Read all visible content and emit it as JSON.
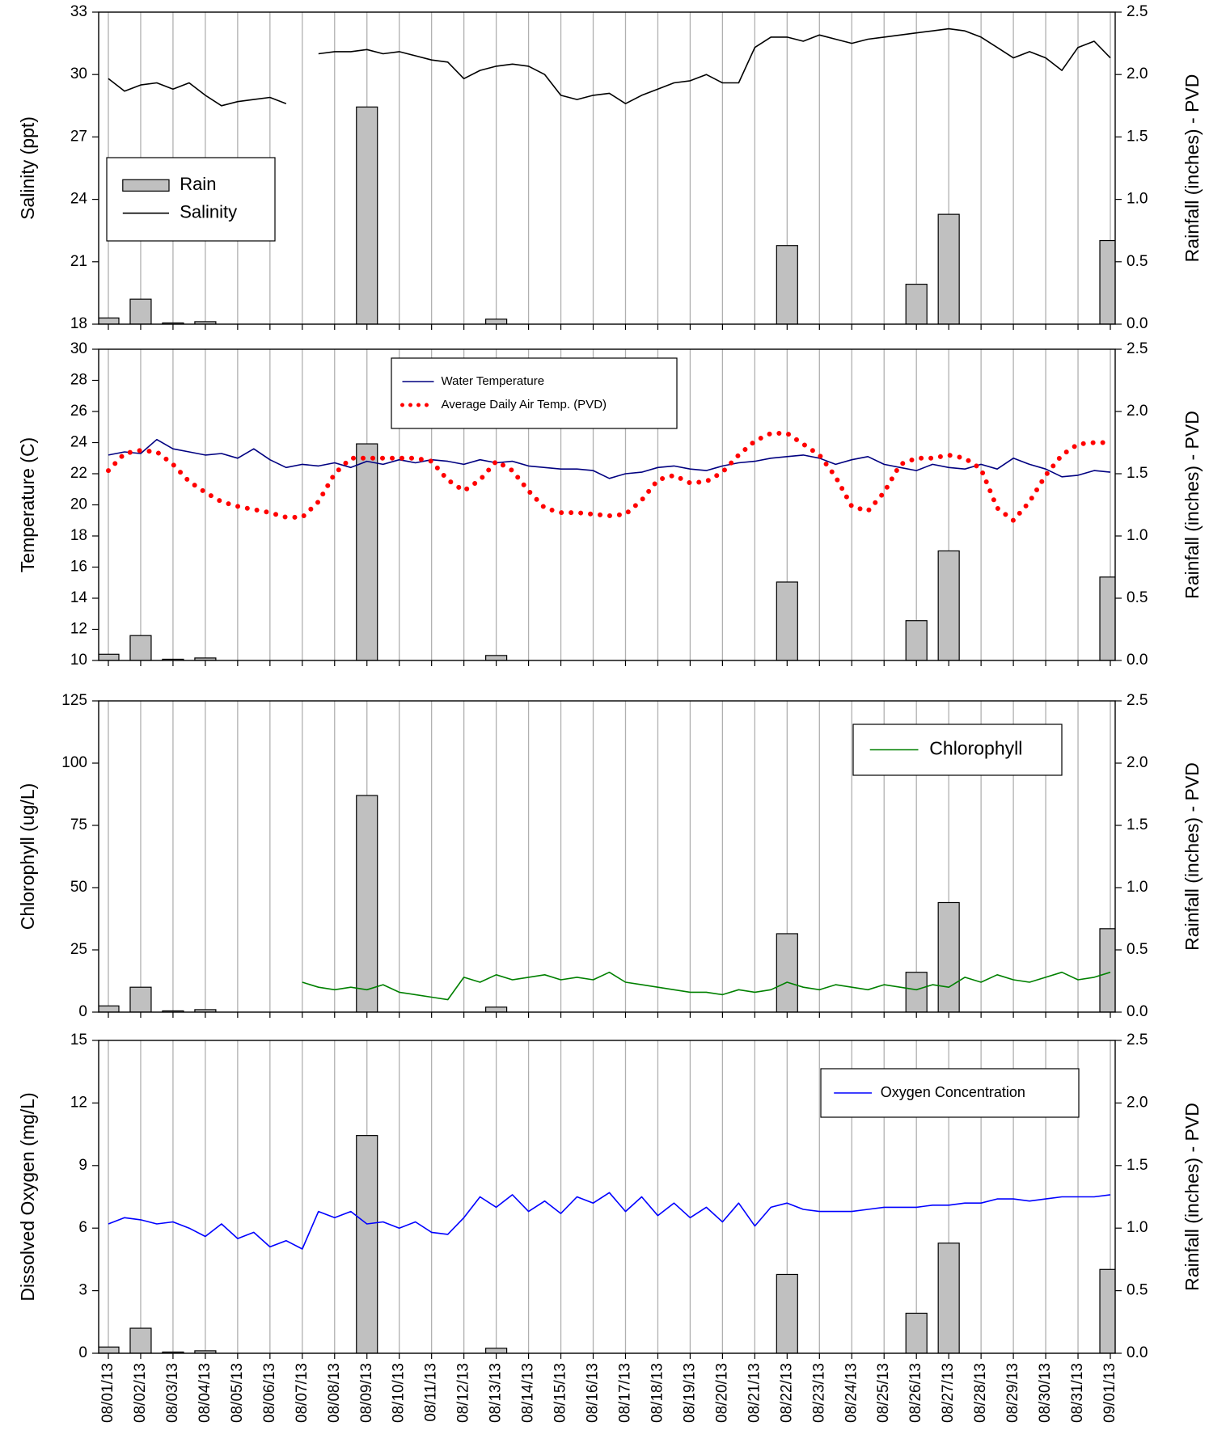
{
  "chart_data": [
    {
      "type": "line",
      "ylabel": "Salinity (ppt)",
      "y2label": "Rainfall (inches) - PVD",
      "xlim": [
        -0.3,
        31.15
      ],
      "xticks": [
        0,
        1,
        2,
        3,
        4,
        5,
        6,
        7,
        8,
        9,
        10,
        11,
        12,
        13,
        14,
        15,
        16,
        17,
        18,
        19,
        20,
        21,
        22,
        23,
        24,
        25,
        26,
        27,
        28,
        29,
        30,
        31
      ],
      "ylim": [
        18,
        33
      ],
      "yticks": [
        18,
        21,
        24,
        27,
        30,
        33
      ],
      "y2lim": [
        0,
        2.5
      ],
      "y2ticks": [
        {
          "value": 0,
          "label": "0.0"
        },
        {
          "value": 0.5,
          "label": "0.5"
        },
        {
          "value": 1,
          "label": "1.0"
        },
        {
          "value": 1.5,
          "label": "1.5"
        },
        {
          "value": 2,
          "label": "2.0"
        },
        {
          "value": 2.5,
          "label": "2.5"
        }
      ],
      "grid": true,
      "x": [
        0,
        0.5,
        1,
        1.5,
        2,
        2.5,
        3,
        3.5,
        4,
        4.5,
        5,
        5.5,
        6,
        6.5,
        7,
        7.5,
        8,
        8.5,
        9,
        9.5,
        10,
        10.5,
        11,
        11.5,
        12,
        12.5,
        13,
        13.5,
        14,
        14.5,
        15,
        15.5,
        16,
        16.5,
        17,
        17.5,
        18,
        18.5,
        19,
        19.5,
        20,
        20.5,
        21,
        21.5,
        22,
        22.5,
        23,
        23.5,
        24,
        24.5,
        25,
        25.5,
        26,
        26.5,
        27,
        27.5,
        28,
        28.5,
        29,
        29.5,
        30,
        30.5,
        31
      ],
      "series": [
        {
          "name": "Rain",
          "type": "bar",
          "axis": "y2",
          "color": "#c0c0c0",
          "x": [
            0,
            1,
            2,
            3,
            8,
            12,
            21,
            25,
            26,
            31
          ],
          "values": [
            0.05,
            0.2,
            0.01,
            0.02,
            1.74,
            0.04,
            0.63,
            0.32,
            0.88,
            0.67
          ]
        },
        {
          "name": "Salinity",
          "type": "line",
          "color": "#000000",
          "values": [
            29.8,
            29.2,
            29.5,
            29.6,
            29.3,
            29.6,
            29.0,
            28.5,
            28.7,
            28.8,
            28.9,
            28.6,
            null,
            31.0,
            31.1,
            31.1,
            31.2,
            31.0,
            31.1,
            30.9,
            30.7,
            30.6,
            29.8,
            30.2,
            30.4,
            30.5,
            30.4,
            30.0,
            29.0,
            28.8,
            29.0,
            29.1,
            28.6,
            29.0,
            29.3,
            29.6,
            29.7,
            30.0,
            29.6,
            29.6,
            31.3,
            31.8,
            31.8,
            31.6,
            31.9,
            31.7,
            31.5,
            31.7,
            31.8,
            31.9,
            32.0,
            32.1,
            32.2,
            32.1,
            31.8,
            31.3,
            30.8,
            31.1,
            30.8,
            30.2,
            31.3,
            31.6,
            30.8
          ]
        }
      ]
    },
    {
      "type": "line",
      "ylabel": "Temperature (C)",
      "y2label": "Rainfall (inches) - PVD",
      "xlim": [
        -0.3,
        31.15
      ],
      "xticks": [
        0,
        1,
        2,
        3,
        4,
        5,
        6,
        7,
        8,
        9,
        10,
        11,
        12,
        13,
        14,
        15,
        16,
        17,
        18,
        19,
        20,
        21,
        22,
        23,
        24,
        25,
        26,
        27,
        28,
        29,
        30,
        31
      ],
      "ylim": [
        10,
        30
      ],
      "yticks": [
        10,
        12,
        14,
        16,
        18,
        20,
        22,
        24,
        26,
        28,
        30
      ],
      "y2lim": [
        0,
        2.5
      ],
      "y2ticks": [
        {
          "value": 0,
          "label": "0.0"
        },
        {
          "value": 0.5,
          "label": "0.5"
        },
        {
          "value": 1,
          "label": "1.0"
        },
        {
          "value": 1.5,
          "label": "1.5"
        },
        {
          "value": 2,
          "label": "2.0"
        },
        {
          "value": 2.5,
          "label": "2.5"
        }
      ],
      "grid": true,
      "x": [
        0,
        0.5,
        1,
        1.5,
        2,
        2.5,
        3,
        3.5,
        4,
        4.5,
        5,
        5.5,
        6,
        6.5,
        7,
        7.5,
        8,
        8.5,
        9,
        9.5,
        10,
        10.5,
        11,
        11.5,
        12,
        12.5,
        13,
        13.5,
        14,
        14.5,
        15,
        15.5,
        16,
        16.5,
        17,
        17.5,
        18,
        18.5,
        19,
        19.5,
        20,
        20.5,
        21,
        21.5,
        22,
        22.5,
        23,
        23.5,
        24,
        24.5,
        25,
        25.5,
        26,
        26.5,
        27,
        27.5,
        28,
        28.5,
        29,
        29.5,
        30,
        30.5,
        31
      ],
      "series": [
        {
          "type": "bar",
          "axis": "y2",
          "color": "#c0c0c0",
          "x": [
            0,
            1,
            2,
            3,
            8,
            12,
            21,
            25,
            26,
            31
          ],
          "values": [
            0.05,
            0.2,
            0.01,
            0.02,
            1.74,
            0.04,
            0.63,
            0.32,
            0.88,
            0.67
          ]
        },
        {
          "name": "Water Temperature",
          "type": "line",
          "color": "#000080",
          "values": [
            23.2,
            23.4,
            23.3,
            24.2,
            23.6,
            23.4,
            23.2,
            23.3,
            23.0,
            23.6,
            22.9,
            22.4,
            22.6,
            22.5,
            22.7,
            22.4,
            22.8,
            22.6,
            22.9,
            22.7,
            22.9,
            22.8,
            22.6,
            22.9,
            22.7,
            22.8,
            22.5,
            22.4,
            22.3,
            22.3,
            22.2,
            21.7,
            22.0,
            22.1,
            22.4,
            22.5,
            22.3,
            22.2,
            22.5,
            22.7,
            22.8,
            23.0,
            23.1,
            23.2,
            23.0,
            22.6,
            22.9,
            23.1,
            22.6,
            22.4,
            22.2,
            22.6,
            22.4,
            22.3,
            22.6,
            22.3,
            23.0,
            22.6,
            22.3,
            21.8,
            21.9,
            22.2,
            22.1
          ]
        },
        {
          "name": "Average Daily Air Temp. (PVD)",
          "type": "line",
          "style": "dotted",
          "color": "#ff0000",
          "values": [
            22.2,
            23.3,
            23.5,
            23.4,
            22.6,
            21.5,
            20.8,
            20.2,
            19.9,
            19.7,
            19.5,
            19.2,
            19.2,
            20.2,
            22.0,
            23.0,
            23.0,
            23.0,
            23.0,
            23.0,
            22.8,
            21.6,
            20.9,
            21.6,
            22.8,
            22.2,
            20.9,
            19.8,
            19.5,
            19.5,
            19.4,
            19.3,
            19.4,
            20.3,
            21.6,
            21.9,
            21.4,
            21.5,
            22.1,
            23.2,
            24.1,
            24.6,
            24.6,
            23.9,
            23.2,
            21.8,
            19.9,
            19.6,
            20.8,
            22.6,
            23.0,
            23.0,
            23.2,
            23.0,
            22.3,
            19.8,
            19.0,
            20.2,
            21.9,
            23.2,
            23.9,
            24.0,
            24.0
          ]
        }
      ]
    },
    {
      "type": "line",
      "ylabel": "Chlorophyll (ug/L)",
      "y2label": "Rainfall (inches) - PVD",
      "xlim": [
        -0.3,
        31.15
      ],
      "xticks": [
        0,
        1,
        2,
        3,
        4,
        5,
        6,
        7,
        8,
        9,
        10,
        11,
        12,
        13,
        14,
        15,
        16,
        17,
        18,
        19,
        20,
        21,
        22,
        23,
        24,
        25,
        26,
        27,
        28,
        29,
        30,
        31
      ],
      "ylim": [
        0,
        125
      ],
      "yticks": [
        0,
        25,
        50,
        75,
        100,
        125
      ],
      "y2lim": [
        0,
        2.5
      ],
      "y2ticks": [
        {
          "value": 0,
          "label": "0.0"
        },
        {
          "value": 0.5,
          "label": "0.5"
        },
        {
          "value": 1,
          "label": "1.0"
        },
        {
          "value": 1.5,
          "label": "1.5"
        },
        {
          "value": 2,
          "label": "2.0"
        },
        {
          "value": 2.5,
          "label": "2.5"
        }
      ],
      "grid": true,
      "x": [
        0,
        0.5,
        1,
        1.5,
        2,
        2.5,
        3,
        3.5,
        4,
        4.5,
        5,
        5.5,
        6,
        6.5,
        7,
        7.5,
        8,
        8.5,
        9,
        9.5,
        10,
        10.5,
        11,
        11.5,
        12,
        12.5,
        13,
        13.5,
        14,
        14.5,
        15,
        15.5,
        16,
        16.5,
        17,
        17.5,
        18,
        18.5,
        19,
        19.5,
        20,
        20.5,
        21,
        21.5,
        22,
        22.5,
        23,
        23.5,
        24,
        24.5,
        25,
        25.5,
        26,
        26.5,
        27,
        27.5,
        28,
        28.5,
        29,
        29.5,
        30,
        30.5,
        31
      ],
      "series": [
        {
          "type": "bar",
          "axis": "y2",
          "color": "#c0c0c0",
          "x": [
            0,
            1,
            2,
            3,
            8,
            12,
            21,
            25,
            26,
            31
          ],
          "values": [
            0.05,
            0.2,
            0.01,
            0.02,
            1.74,
            0.04,
            0.63,
            0.32,
            0.88,
            0.67
          ]
        },
        {
          "name": "Chlorophyll",
          "type": "line",
          "color": "#008000",
          "values": [
            null,
            null,
            null,
            null,
            null,
            null,
            null,
            null,
            null,
            null,
            null,
            null,
            12,
            10,
            9,
            10,
            9,
            11,
            8,
            7,
            6,
            5,
            14,
            12,
            15,
            13,
            14,
            15,
            13,
            14,
            13,
            16,
            12,
            11,
            10,
            9,
            8,
            8,
            7,
            9,
            8,
            9,
            12,
            10,
            9,
            11,
            10,
            9,
            11,
            10,
            9,
            11,
            10,
            14,
            12,
            15,
            13,
            12,
            14,
            16,
            13,
            14,
            16
          ]
        }
      ]
    },
    {
      "type": "line",
      "ylabel": "Dissolved Oxygen (mg/L)",
      "y2label": "Rainfall (inches) - PVD",
      "xlim": [
        -0.3,
        31.15
      ],
      "xticks": [
        {
          "value": 0,
          "label": "08/01/13"
        },
        {
          "value": 1,
          "label": "08/02/13"
        },
        {
          "value": 2,
          "label": "08/03/13"
        },
        {
          "value": 3,
          "label": "08/04/13"
        },
        {
          "value": 4,
          "label": "08/05/13"
        },
        {
          "value": 5,
          "label": "08/06/13"
        },
        {
          "value": 6,
          "label": "08/07/13"
        },
        {
          "value": 7,
          "label": "08/08/13"
        },
        {
          "value": 8,
          "label": "08/09/13"
        },
        {
          "value": 9,
          "label": "08/10/13"
        },
        {
          "value": 10,
          "label": "08/11/13"
        },
        {
          "value": 11,
          "label": "08/12/13"
        },
        {
          "value": 12,
          "label": "08/13/13"
        },
        {
          "value": 13,
          "label": "08/14/13"
        },
        {
          "value": 14,
          "label": "08/15/13"
        },
        {
          "value": 15,
          "label": "08/16/13"
        },
        {
          "value": 16,
          "label": "08/17/13"
        },
        {
          "value": 17,
          "label": "08/18/13"
        },
        {
          "value": 18,
          "label": "08/19/13"
        },
        {
          "value": 19,
          "label": "08/20/13"
        },
        {
          "value": 20,
          "label": "08/21/13"
        },
        {
          "value": 21,
          "label": "08/22/13"
        },
        {
          "value": 22,
          "label": "08/23/13"
        },
        {
          "value": 23,
          "label": "08/24/13"
        },
        {
          "value": 24,
          "label": "08/25/13"
        },
        {
          "value": 25,
          "label": "08/26/13"
        },
        {
          "value": 26,
          "label": "08/27/13"
        },
        {
          "value": 27,
          "label": "08/28/13"
        },
        {
          "value": 28,
          "label": "08/29/13"
        },
        {
          "value": 29,
          "label": "08/30/13"
        },
        {
          "value": 30,
          "label": "08/31/13"
        },
        {
          "value": 31,
          "label": "09/01/13"
        }
      ],
      "ylim": [
        0,
        15
      ],
      "yticks": [
        0,
        3,
        6,
        9,
        12,
        15
      ],
      "y2lim": [
        0,
        2.5
      ],
      "y2ticks": [
        {
          "value": 0,
          "label": "0.0"
        },
        {
          "value": 0.5,
          "label": "0.5"
        },
        {
          "value": 1,
          "label": "1.0"
        },
        {
          "value": 1.5,
          "label": "1.5"
        },
        {
          "value": 2,
          "label": "2.0"
        },
        {
          "value": 2.5,
          "label": "2.5"
        }
      ],
      "grid": true,
      "x": [
        0,
        0.5,
        1,
        1.5,
        2,
        2.5,
        3,
        3.5,
        4,
        4.5,
        5,
        5.5,
        6,
        6.5,
        7,
        7.5,
        8,
        8.5,
        9,
        9.5,
        10,
        10.5,
        11,
        11.5,
        12,
        12.5,
        13,
        13.5,
        14,
        14.5,
        15,
        15.5,
        16,
        16.5,
        17,
        17.5,
        18,
        18.5,
        19,
        19.5,
        20,
        20.5,
        21,
        21.5,
        22,
        22.5,
        23,
        23.5,
        24,
        24.5,
        25,
        25.5,
        26,
        26.5,
        27,
        27.5,
        28,
        28.5,
        29,
        29.5,
        30,
        30.5,
        31
      ],
      "series": [
        {
          "type": "bar",
          "axis": "y2",
          "color": "#c0c0c0",
          "x": [
            0,
            1,
            2,
            3,
            8,
            12,
            21,
            25,
            26,
            31
          ],
          "values": [
            0.05,
            0.2,
            0.01,
            0.02,
            1.74,
            0.04,
            0.63,
            0.32,
            0.88,
            0.67
          ]
        },
        {
          "name": "Oxygen Concentration",
          "type": "line",
          "color": "#0000ff",
          "values": [
            6.2,
            6.5,
            6.4,
            6.2,
            6.3,
            6.0,
            5.6,
            6.2,
            5.5,
            5.8,
            5.1,
            5.4,
            5.0,
            6.8,
            6.5,
            6.8,
            6.2,
            6.3,
            6.0,
            6.3,
            5.8,
            5.7,
            6.5,
            7.5,
            7.0,
            7.6,
            6.8,
            7.3,
            6.7,
            7.5,
            7.2,
            7.7,
            6.8,
            7.5,
            6.6,
            7.2,
            6.5,
            7.0,
            6.3,
            7.2,
            6.1,
            7.0,
            7.2,
            6.9,
            6.8,
            6.8,
            6.8,
            6.9,
            7.0,
            7.0,
            7.0,
            7.1,
            7.1,
            7.2,
            7.2,
            7.4,
            7.4,
            7.3,
            7.4,
            7.5,
            7.5,
            7.5,
            7.6
          ]
        }
      ]
    }
  ]
}
